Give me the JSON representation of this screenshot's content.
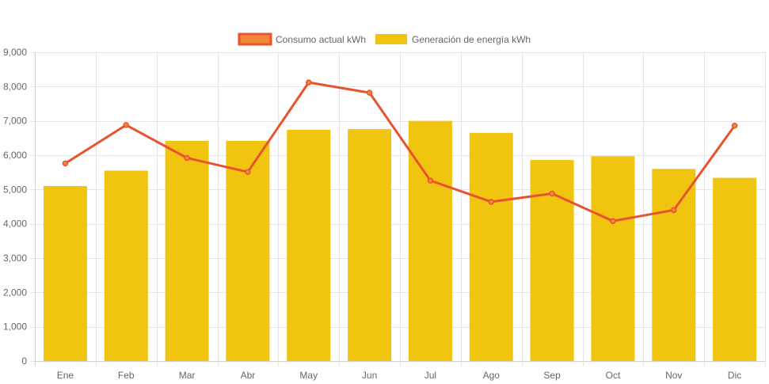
{
  "chart_data": {
    "type": "bar",
    "categories": [
      "Ene",
      "Feb",
      "Mar",
      "Abr",
      "May",
      "Jun",
      "Jul",
      "Ago",
      "Sep",
      "Oct",
      "Nov",
      "Dic"
    ],
    "series": [
      {
        "name": "Consumo actual kWh",
        "type": "line",
        "color": "#e8532f",
        "point_fill": "#f0883a",
        "values": [
          5760,
          6880,
          5920,
          5510,
          8120,
          7820,
          5260,
          4640,
          4880,
          4080,
          4400,
          6860
        ]
      },
      {
        "name": "Generación de energía kWh",
        "type": "bar",
        "color": "#f1c40f",
        "values": [
          5100,
          5550,
          6420,
          6420,
          6740,
          6760,
          7000,
          6650,
          5860,
          5970,
          5600,
          5340
        ]
      }
    ],
    "ylim": [
      0,
      9000
    ],
    "yticks": [
      0,
      1000,
      2000,
      3000,
      4000,
      5000,
      6000,
      7000,
      8000,
      9000
    ],
    "ytick_labels": [
      "0",
      "1,000",
      "2,000",
      "3,000",
      "4,000",
      "5,000",
      "6,000",
      "7,000",
      "8,000",
      "9,000"
    ],
    "grid": true,
    "legend_position": "top-center"
  }
}
